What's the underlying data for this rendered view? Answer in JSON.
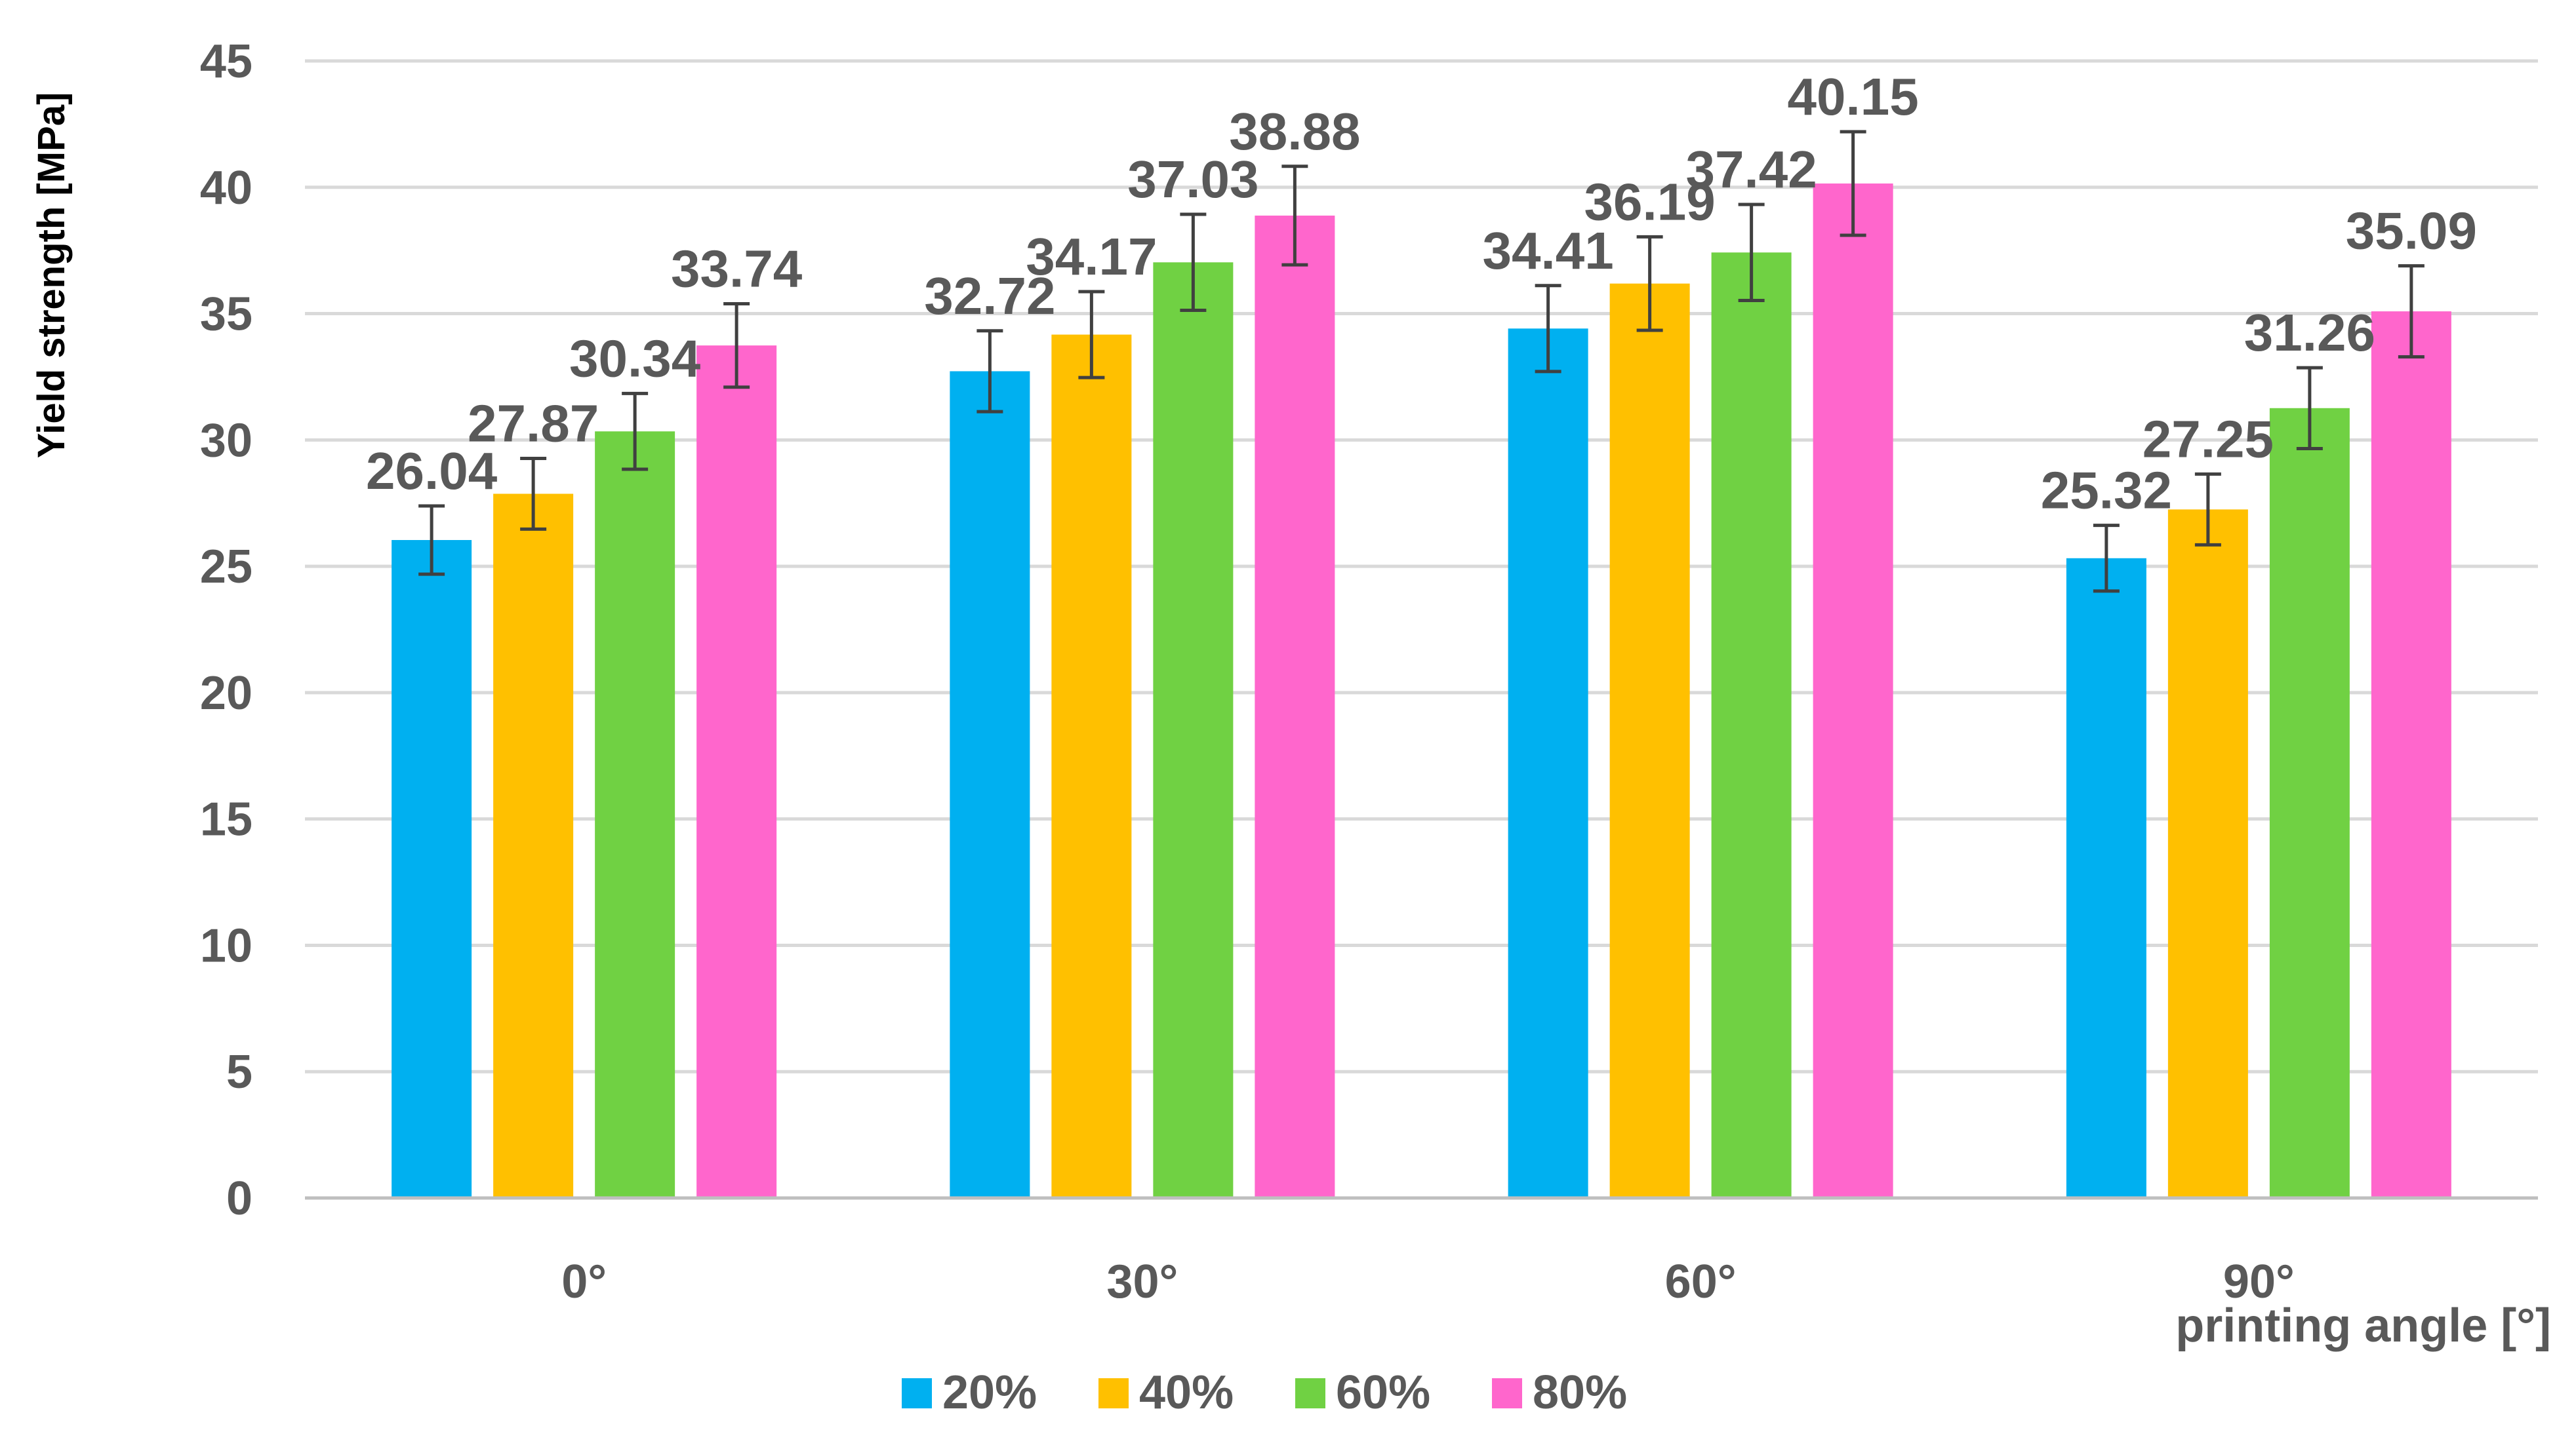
{
  "chart_data": {
    "type": "bar",
    "title": "",
    "xlabel": "printing angle [°]",
    "ylabel": "Yield strength [MPa]",
    "ylim": [
      0,
      45
    ],
    "ytick_step": 5,
    "yticks": [
      "0",
      "5",
      "10",
      "15",
      "20",
      "25",
      "30",
      "35",
      "40",
      "45"
    ],
    "grid": true,
    "legend_position": "bottom",
    "categories": [
      "0°",
      "30°",
      "60°",
      "90°"
    ],
    "series": [
      {
        "name": "20%",
        "color": "#00B0F0",
        "values": [
          26.04,
          32.72,
          34.41,
          25.32
        ],
        "labels": [
          "26.04",
          "32.72",
          "34.41",
          "25.32"
        ],
        "errors": [
          1.35,
          1.6,
          1.7,
          1.3
        ]
      },
      {
        "name": "40%",
        "color": "#FFC000",
        "values": [
          27.87,
          34.17,
          36.19,
          27.25
        ],
        "labels": [
          "27.87",
          "34.17",
          "36.19",
          "27.25"
        ],
        "errors": [
          1.4,
          1.7,
          1.85,
          1.4
        ]
      },
      {
        "name": "60%",
        "color": "#70D143",
        "values": [
          30.34,
          37.03,
          37.42,
          31.26
        ],
        "labels": [
          "30.34",
          "37.03",
          "37.42",
          "31.26"
        ],
        "errors": [
          1.5,
          1.9,
          1.9,
          1.6
        ]
      },
      {
        "name": "80%",
        "color": "#FF66CC",
        "values": [
          33.74,
          38.88,
          40.15,
          35.09
        ],
        "labels": [
          "33.74",
          "38.88",
          "40.15",
          "35.09"
        ],
        "errors": [
          1.65,
          1.95,
          2.05,
          1.8
        ]
      }
    ]
  }
}
